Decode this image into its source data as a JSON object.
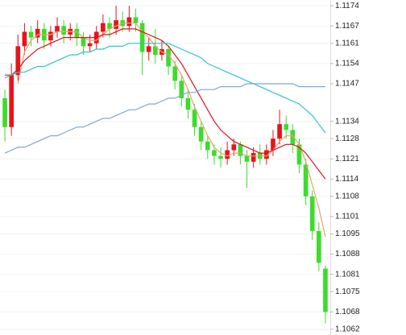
{
  "chart_data": {
    "type": "candlestick",
    "open": [
      1.1142,
      1.1132,
      1.115,
      1.116,
      1.1165,
      1.1163,
      1.1166,
      1.1162,
      1.1165,
      1.1167,
      1.1164,
      1.1166,
      1.1163,
      1.116,
      1.1161,
      1.1165,
      1.1168,
      1.1166,
      1.1169,
      1.1167,
      1.117,
      1.1168,
      1.1158,
      1.116,
      1.1157,
      1.1159,
      1.1153,
      1.1148,
      1.1142,
      1.1138,
      1.1132,
      1.1127,
      1.1124,
      1.1122,
      1.1121,
      1.1124,
      1.1126,
      1.1122,
      1.112,
      1.1123,
      1.1121,
      1.1124,
      1.1128,
      1.1133,
      1.1131,
      1.1126,
      1.1119,
      1.1108,
      1.1096,
      1.1083
    ],
    "high": [
      1.1145,
      1.1154,
      1.1164,
      1.1168,
      1.1167,
      1.1169,
      1.1168,
      1.1167,
      1.117,
      1.1169,
      1.1168,
      1.1168,
      1.1165,
      1.1164,
      1.1167,
      1.1171,
      1.117,
      1.1174,
      1.1172,
      1.1174,
      1.1173,
      1.1169,
      1.1163,
      1.1166,
      1.1162,
      1.116,
      1.1155,
      1.115,
      1.1145,
      1.114,
      1.1134,
      1.1129,
      1.1126,
      1.1125,
      1.1127,
      1.1128,
      1.1127,
      1.1124,
      1.1125,
      1.1126,
      1.1126,
      1.1131,
      1.1138,
      1.1136,
      1.1133,
      1.1128,
      1.1121,
      1.111,
      1.1099,
      1.1084
    ],
    "low": [
      1.1127,
      1.1129,
      1.1148,
      1.1157,
      1.116,
      1.1161,
      1.1159,
      1.116,
      1.1163,
      1.1161,
      1.1162,
      1.116,
      1.1157,
      1.1158,
      1.1159,
      1.1163,
      1.1163,
      1.1164,
      1.1165,
      1.1165,
      1.1165,
      1.115,
      1.1155,
      1.1154,
      1.1155,
      1.115,
      1.1145,
      1.1139,
      1.1135,
      1.1129,
      1.1124,
      1.1121,
      1.1119,
      1.1118,
      1.1119,
      1.1122,
      1.1119,
      1.1111,
      1.1118,
      1.1119,
      1.1119,
      1.1122,
      1.1126,
      1.1128,
      1.1123,
      1.1116,
      1.1105,
      1.1093,
      1.1082,
      1.1064
    ],
    "close": [
      1.1132,
      1.115,
      1.116,
      1.1165,
      1.1163,
      1.1166,
      1.1162,
      1.1165,
      1.1167,
      1.1164,
      1.1166,
      1.1163,
      1.116,
      1.1161,
      1.1165,
      1.1168,
      1.1166,
      1.1169,
      1.1167,
      1.117,
      1.1168,
      1.1158,
      1.116,
      1.1157,
      1.1159,
      1.1153,
      1.1148,
      1.1142,
      1.1138,
      1.1132,
      1.1127,
      1.1124,
      1.1122,
      1.1121,
      1.1124,
      1.1126,
      1.1122,
      1.112,
      1.1123,
      1.1121,
      1.1124,
      1.1128,
      1.1133,
      1.1131,
      1.1126,
      1.1119,
      1.1108,
      1.1096,
      1.1085,
      1.1068
    ],
    "up_color": "#e8141b",
    "down_color": "#3ddc2c",
    "series": [
      {
        "color": "#e9a36b",
        "values": [
          null,
          null,
          1.1147,
          1.1158,
          1.1162,
          1.1164,
          1.1164,
          1.1164,
          1.1165,
          1.1165,
          1.1165,
          1.1165,
          1.1163,
          1.1162,
          1.1162,
          1.1164,
          1.1166,
          1.1167,
          1.1168,
          1.1168,
          1.1168,
          1.1165,
          1.1163,
          1.116,
          1.1158,
          1.1157,
          1.1154,
          1.115,
          1.1145,
          1.1139,
          1.1134,
          1.1129,
          1.1125,
          1.1123,
          1.1122,
          1.1123,
          1.1123,
          1.1122,
          1.1122,
          1.1122,
          1.1122,
          1.1124,
          1.1127,
          1.1129,
          1.1129,
          1.1126,
          1.112,
          1.1112,
          1.1104,
          1.1094
        ]
      },
      {
        "color": "#d8141b",
        "values": [
          1.115,
          1.115,
          1.1152,
          1.1155,
          1.1157,
          1.1159,
          1.116,
          1.1161,
          1.1162,
          1.1163,
          1.1163,
          1.1163,
          1.1163,
          1.1163,
          1.1163,
          1.1164,
          1.1164,
          1.1165,
          1.1166,
          1.1166,
          1.1166,
          1.1165,
          1.1164,
          1.1163,
          1.1162,
          1.116,
          1.1157,
          1.1154,
          1.115,
          1.1146,
          1.1142,
          1.1138,
          1.1134,
          1.1131,
          1.1129,
          1.1127,
          1.1126,
          1.1125,
          1.1124,
          1.1123,
          1.1123,
          1.1124,
          1.1125,
          1.1126,
          1.1126,
          1.1125,
          1.1123,
          1.112,
          1.1117,
          1.1114
        ]
      },
      {
        "color": "#2ec4cf",
        "values": [
          1.1149,
          1.115,
          1.1151,
          1.1151,
          1.1152,
          1.1153,
          1.1153,
          1.1154,
          1.1155,
          1.1156,
          1.1157,
          1.1157,
          1.1158,
          1.1158,
          1.1159,
          1.1159,
          1.116,
          1.116,
          1.116,
          1.1161,
          1.1161,
          1.1161,
          1.1161,
          1.1161,
          1.1161,
          1.1161,
          1.116,
          1.1159,
          1.1158,
          1.1157,
          1.1156,
          1.1154,
          1.1153,
          1.1152,
          1.1151,
          1.115,
          1.1149,
          1.1148,
          1.1147,
          1.1146,
          1.1145,
          1.1144,
          1.1143,
          1.1142,
          1.1141,
          1.114,
          1.1138,
          1.1136,
          1.1133,
          1.113
        ]
      },
      {
        "color": "#7fa8cf",
        "values": [
          1.1123,
          1.1124,
          1.1125,
          1.1125,
          1.1126,
          1.1127,
          1.1128,
          1.1129,
          1.1129,
          1.113,
          1.1131,
          1.1132,
          1.1132,
          1.1133,
          1.1134,
          1.1135,
          1.1135,
          1.1136,
          1.1137,
          1.1138,
          1.1138,
          1.1139,
          1.114,
          1.114,
          1.1141,
          1.1142,
          1.1142,
          1.1143,
          1.1144,
          1.1144,
          1.1145,
          1.1145,
          1.1145,
          1.1146,
          1.1146,
          1.1146,
          1.1146,
          1.1147,
          1.1147,
          1.1147,
          1.1147,
          1.1147,
          1.1147,
          1.1147,
          1.1147,
          1.1146,
          1.1146,
          1.1146,
          1.1146,
          1.1146
        ]
      }
    ],
    "ylim": [
      1.106,
      1.1176
    ],
    "yticks": [
      1.1174,
      1.1167,
      1.1161,
      1.1154,
      1.1147,
      1.1134,
      1.1128,
      1.1121,
      1.1114,
      1.1108,
      1.1101,
      1.1095,
      1.1088,
      1.1081,
      1.1075,
      1.1068,
      1.1062
    ],
    "grid": true
  }
}
